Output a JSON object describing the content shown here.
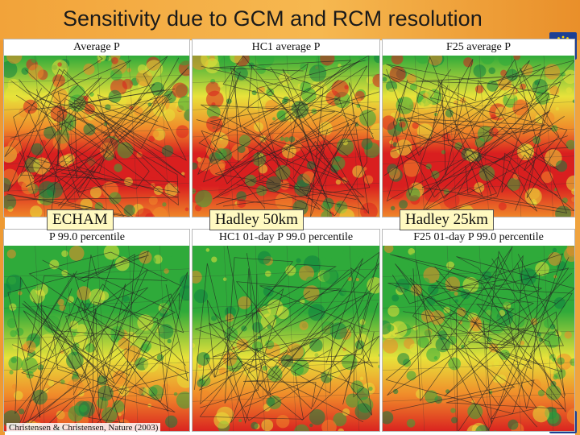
{
  "slide": {
    "title": "Sensitivity due to GCM and RCM resolution",
    "citation": "Christensen & Christensen, Nature (2003)"
  },
  "panels": {
    "top": [
      {
        "caption": "Average P"
      },
      {
        "caption": "HC1 average P"
      },
      {
        "caption": "F25 average P"
      }
    ],
    "bottom": [
      {
        "caption": "P 99.0 percentile"
      },
      {
        "caption": "HC1 01-day P 99.0 percentile"
      },
      {
        "caption": "F25 01-day P 99.0 percentile"
      }
    ]
  },
  "models": [
    {
      "label": "ECHAM"
    },
    {
      "label": "Hadley 50km"
    },
    {
      "label": "Hadley 25km"
    }
  ],
  "colors": {
    "title_bar": "#f2a33a",
    "dry_red": "#d91f1f",
    "mid_orange": "#f08a2a",
    "yellow": "#e8e23a",
    "wet_green": "#2faa3a",
    "deep_green": "#0f7f3f",
    "sea_blue": "#1c3f94"
  }
}
